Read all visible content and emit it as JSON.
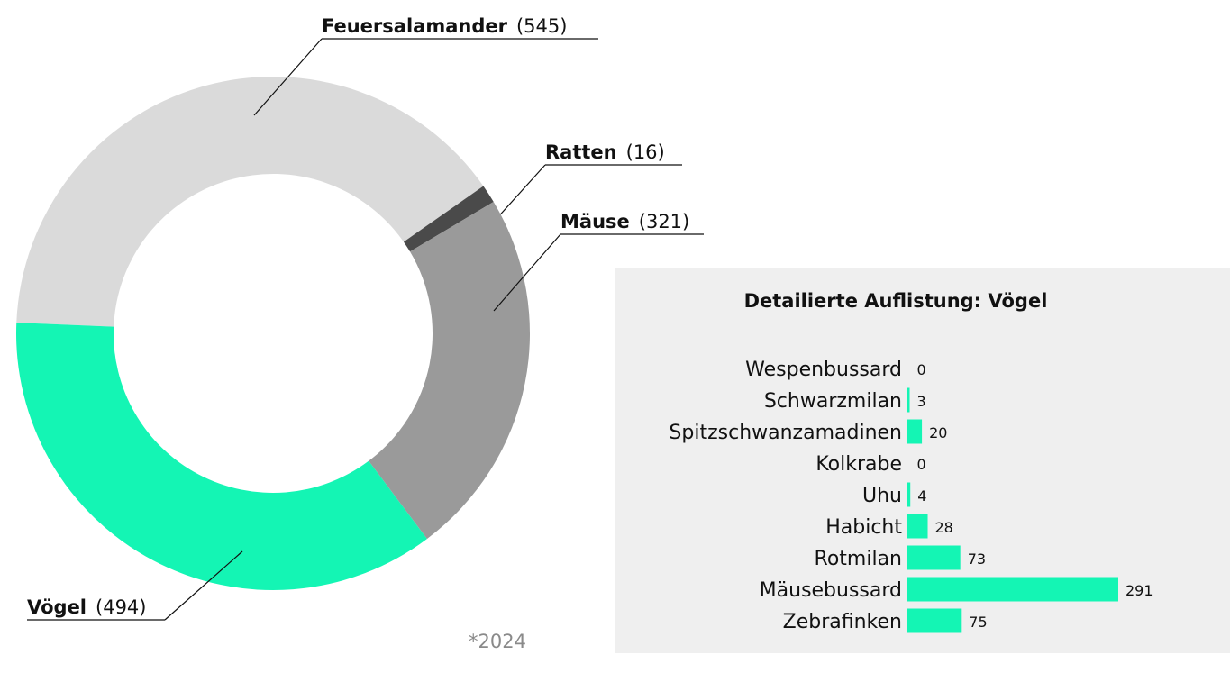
{
  "footnote": "*2024",
  "colors": {
    "accent": "#14f5b4",
    "feuersalamander": "#dadada",
    "ratten": "#4a4a4a",
    "maeuse": "#9a9a9a",
    "voegel": "#14f5b4",
    "panel": "#efefef"
  },
  "chart_data": [
    {
      "type": "pie",
      "variant": "donut",
      "title": "",
      "slices": [
        {
          "label": "Feuersalamander",
          "value": 545,
          "value_label": "(545)",
          "color": "#dadada"
        },
        {
          "label": "Ratten",
          "value": 16,
          "value_label": "(16)",
          "color": "#4a4a4a"
        },
        {
          "label": "Mäuse",
          "value": 321,
          "value_label": "(321)",
          "color": "#9a9a9a"
        },
        {
          "label": "Vögel",
          "value": 494,
          "value_label": "(494)",
          "color": "#14f5b4"
        }
      ]
    },
    {
      "type": "bar",
      "orientation": "horizontal",
      "title": "Detailierte Auflistung: Vögel",
      "categories": [
        "Wespenbussard",
        "Schwarzmilan",
        "Spitzschwanzamadinen",
        "Kolkrabe",
        "Uhu",
        "Habicht",
        "Rotmilan",
        "Mäusebussard",
        "Zebrafinken"
      ],
      "values": [
        0,
        3,
        20,
        0,
        4,
        28,
        73,
        291,
        75
      ],
      "color": "#14f5b4",
      "xlabel": "",
      "ylabel": ""
    }
  ]
}
